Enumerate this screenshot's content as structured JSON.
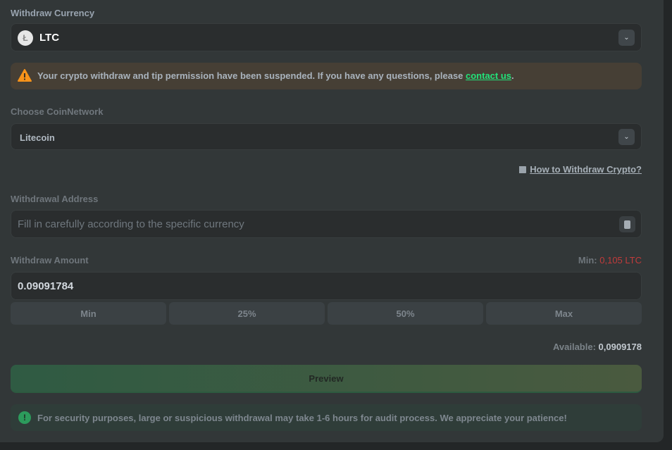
{
  "currency": {
    "label": "Withdraw Currency",
    "value": "LTC",
    "icon": "litecoin-icon"
  },
  "warning": {
    "icon": "warning-icon",
    "text": "Your crypto withdraw and tip permission have been suspended. If you have any questions, please ",
    "link": "contact us",
    "suffix": ".",
    "color": "#f7931a",
    "link_color": "#22e37a"
  },
  "network": {
    "label": "Choose CoinNetwork",
    "value": "Litecoin"
  },
  "help_link": {
    "icon": "book-icon",
    "text": "How to Withdraw Crypto?"
  },
  "address": {
    "label": "Withdrawal Address",
    "placeholder": "Fill in carefully according to the specific currency",
    "icon": "address-book-icon"
  },
  "amount": {
    "label": "Withdraw Amount",
    "min_label": "Min:",
    "min_value": "0,105 LTC",
    "value": "0.09091784",
    "min_color": "#c13b3b"
  },
  "quick": [
    "Min",
    "25%",
    "50%",
    "Max"
  ],
  "available": {
    "label": "Available:",
    "value": "0,0909178"
  },
  "preview_label": "Preview",
  "notice": {
    "icon": "info-icon",
    "text": "For security purposes, large or suspicious withdrawal may take 1-6 hours for audit process. We appreciate your patience!"
  }
}
